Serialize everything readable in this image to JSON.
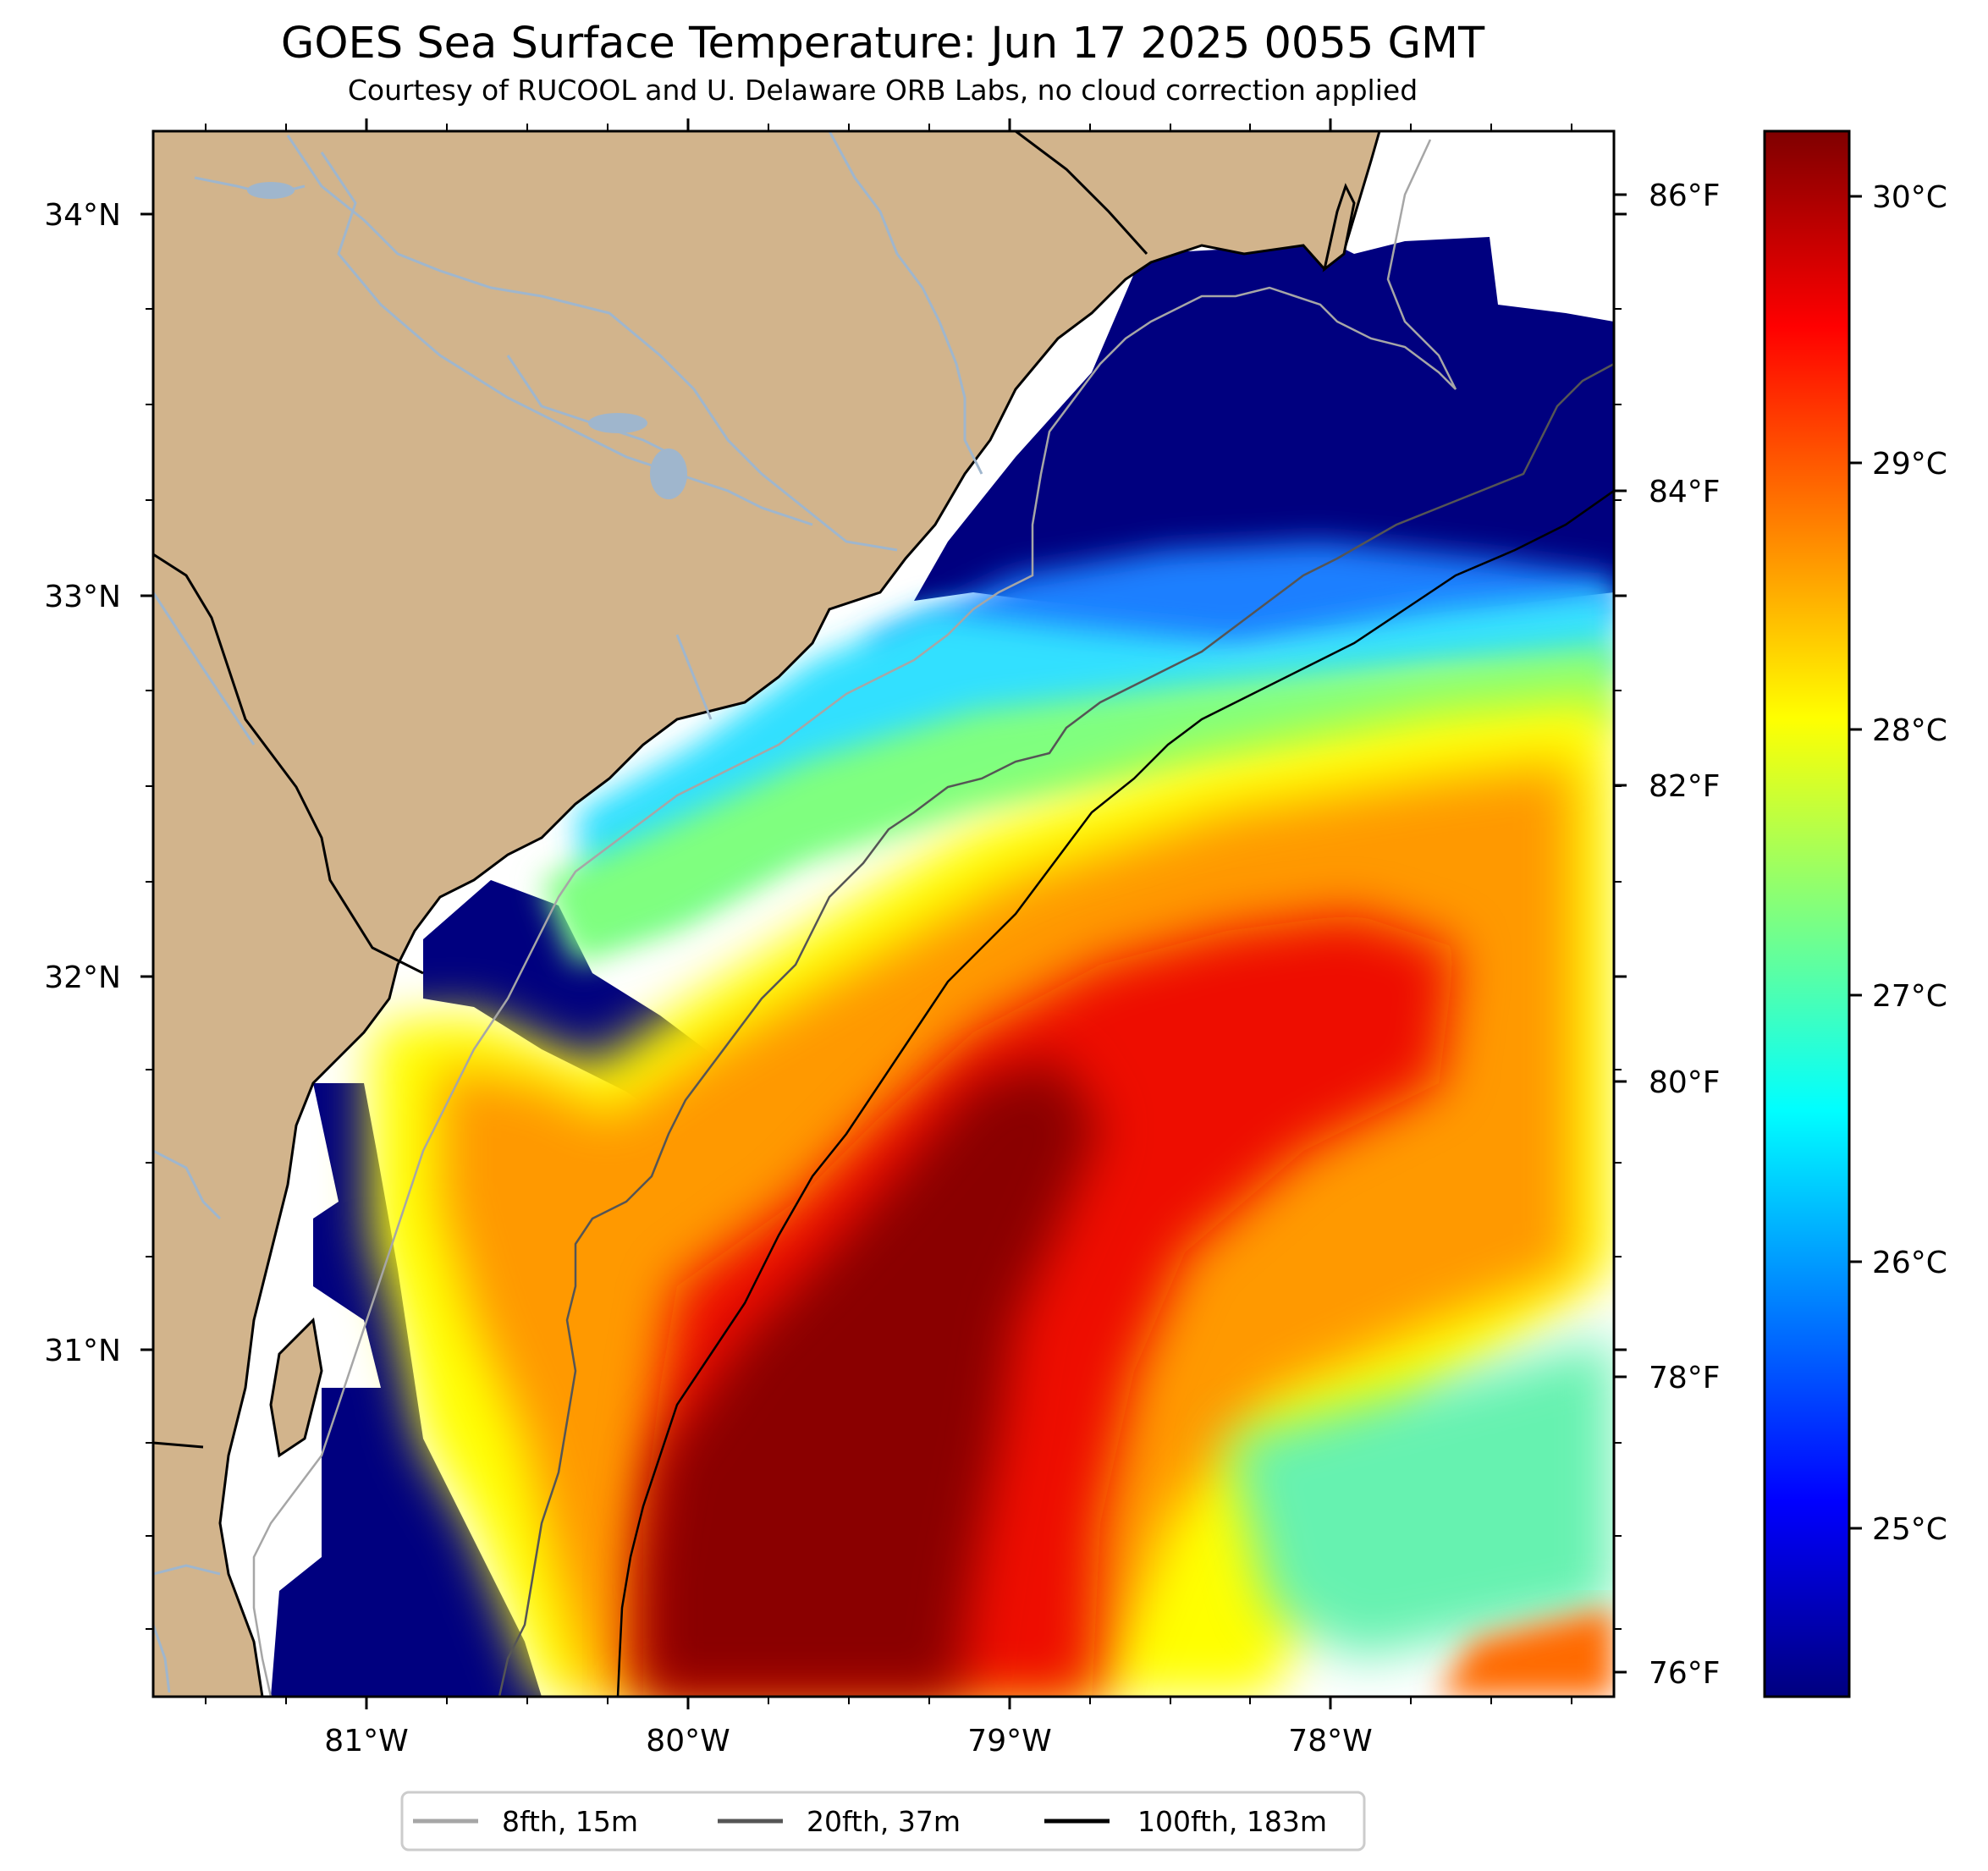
{
  "title": "GOES Sea Surface Temperature: Jun 17 2025 0055 GMT",
  "subtitle": "Courtesy of RUCOOL and U. Delaware ORB Labs, no cloud correction applied",
  "axes": {
    "lat_labels": [
      "34°N",
      "33°N",
      "32°N",
      "31°N"
    ],
    "lon_labels": [
      "81°W",
      "80°W",
      "79°W",
      "78°W"
    ],
    "fahrenheit_labels": [
      "86°F",
      "84°F",
      "82°F",
      "80°F",
      "78°F",
      "76°F"
    ]
  },
  "colorbar": {
    "labels": [
      "30°C",
      "29°C",
      "28°C",
      "27°C",
      "26°C",
      "25°C"
    ],
    "colormap": "jet",
    "colors": [
      "#00007f",
      "#0000ff",
      "#007fff",
      "#00ffff",
      "#7fff7f",
      "#ffff00",
      "#ff7f00",
      "#ff0000",
      "#7f0000"
    ]
  },
  "legend": {
    "items": [
      {
        "label": "8fth, 15m",
        "color": "#a6a6a6"
      },
      {
        "label": "20fth, 37m",
        "color": "#555555"
      },
      {
        "label": "100fth, 183m",
        "color": "#000000"
      }
    ]
  },
  "colors": {
    "land": "#d2b48c",
    "river": "#9fb6cd",
    "no_data": "#ffffff"
  }
}
